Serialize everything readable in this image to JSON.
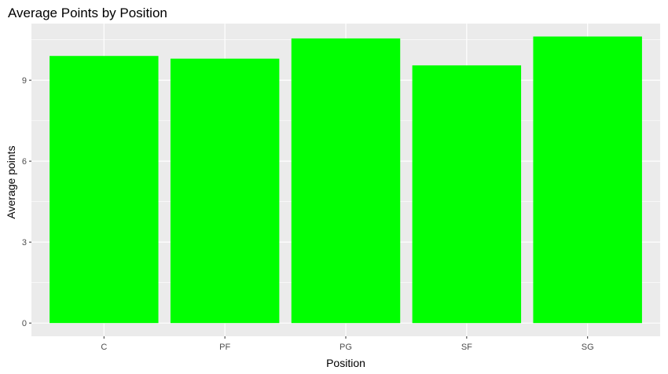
{
  "chart_data": {
    "type": "bar",
    "title": "Average Points by Position",
    "xlabel": "Position",
    "ylabel": "Average points",
    "categories": [
      "C",
      "PF",
      "PG",
      "SF",
      "SG"
    ],
    "values": [
      9.9,
      9.8,
      10.55,
      9.55,
      10.62
    ],
    "ylim": [
      -0.49,
      11.1
    ],
    "yticks": [
      0,
      3,
      6,
      9
    ],
    "ytick_labels": [
      "0",
      "3",
      "6",
      "9"
    ],
    "grid": true,
    "legend": "none",
    "colors": {
      "bar": "#00ff00",
      "panel_background": "#ebebeb",
      "grid": "#ffffff",
      "tick_label": "#4d4d4d",
      "text": "#000000"
    }
  }
}
